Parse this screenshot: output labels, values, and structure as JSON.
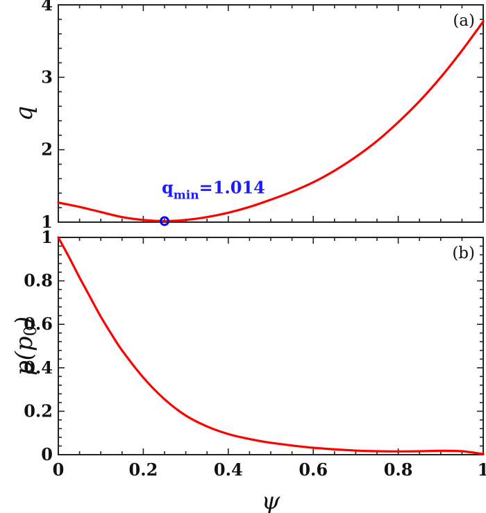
{
  "chart_data": [
    {
      "type": "line",
      "panel": "(a)",
      "xlabel": "",
      "ylabel": "q",
      "xlim": [
        0,
        1
      ],
      "ylim": [
        1,
        4
      ],
      "xticks": [
        0,
        0.2,
        0.4,
        0.6,
        0.8,
        1
      ],
      "yticks": [
        1,
        2,
        3,
        4
      ],
      "ytick_labels": [
        "1",
        "2",
        "3",
        "4"
      ],
      "grid": false,
      "line_color": "#ff0000",
      "series": [
        {
          "x": [
            0,
            0.05,
            0.1,
            0.15,
            0.2,
            0.25,
            0.3,
            0.35,
            0.4,
            0.45,
            0.5,
            0.55,
            0.6,
            0.65,
            0.7,
            0.75,
            0.8,
            0.85,
            0.9,
            0.95,
            1.0
          ],
          "y": [
            1.27,
            1.21,
            1.14,
            1.07,
            1.03,
            1.014,
            1.03,
            1.07,
            1.13,
            1.21,
            1.31,
            1.42,
            1.55,
            1.71,
            1.9,
            2.12,
            2.38,
            2.67,
            3.0,
            3.37,
            3.77
          ]
        }
      ],
      "annotation": {
        "marker": {
          "x": 0.25,
          "y": 1.014,
          "color": "#0000ee"
        },
        "text_main": "q",
        "text_sub": "min",
        "text_value": "=1.014",
        "color": "#1a1aff"
      }
    },
    {
      "type": "line",
      "panel": "(b)",
      "xlabel": "ψ",
      "ylabel": "p(p0)",
      "ylabel_main": "p(p",
      "ylabel_sub": "0",
      "ylabel_close": ")",
      "xlim": [
        0,
        1
      ],
      "ylim": [
        0,
        1
      ],
      "xticks": [
        0,
        0.2,
        0.4,
        0.6,
        0.8,
        1
      ],
      "xtick_labels": [
        "0",
        "0.2",
        "0.4",
        "0.6",
        "0.8",
        "1"
      ],
      "yticks": [
        0,
        0.2,
        0.4,
        0.6,
        0.8,
        1
      ],
      "ytick_labels": [
        "0",
        "0.2",
        "0.4",
        "0.6",
        "0.8",
        "1"
      ],
      "grid": false,
      "line_color": "#ff0000",
      "series": [
        {
          "x": [
            0,
            0.025,
            0.05,
            0.075,
            0.1,
            0.125,
            0.15,
            0.2,
            0.25,
            0.3,
            0.35,
            0.4,
            0.45,
            0.5,
            0.6,
            0.7,
            0.75,
            0.8,
            0.85,
            0.9,
            0.95,
            1.0
          ],
          "y": [
            1.0,
            0.91,
            0.815,
            0.725,
            0.635,
            0.555,
            0.48,
            0.355,
            0.255,
            0.18,
            0.13,
            0.095,
            0.072,
            0.055,
            0.032,
            0.019,
            0.016,
            0.015,
            0.016,
            0.018,
            0.016,
            0.003
          ]
        }
      ]
    }
  ]
}
